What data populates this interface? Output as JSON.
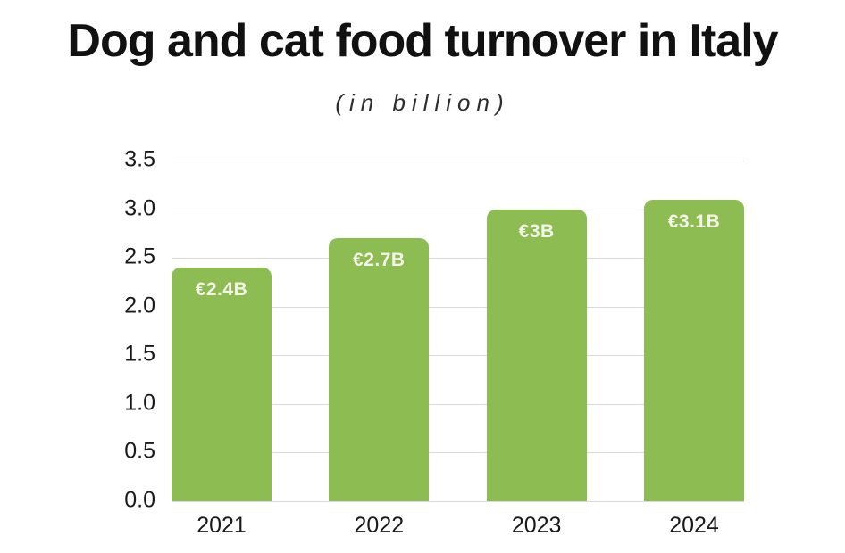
{
  "chart_data": {
    "type": "bar",
    "title": "Dog and cat food turnover in Italy",
    "subtitle": "(in billion)",
    "categories": [
      "2021",
      "2022",
      "2023",
      "2024"
    ],
    "values": [
      2.4,
      2.7,
      3.0,
      3.1
    ],
    "bar_labels": [
      "€2.4B",
      "€2.7B",
      "€3B",
      "€3.1B"
    ],
    "xlabel": "",
    "ylabel": "",
    "ylim": [
      0,
      3.5
    ],
    "yticks": [
      0,
      0.5,
      1,
      1.5,
      2,
      2.5,
      3,
      3.5
    ],
    "ytick_labels": [
      "0.0",
      "0.5",
      "1.0",
      "1.5",
      "2.0",
      "2.5",
      "3.0",
      "3.5"
    ],
    "grid": "horizontal",
    "legend": "none",
    "colors": {
      "bar": "#8CBC52",
      "bar_label_text": "#F4F5E8",
      "gridline": "#D9D9D9",
      "title_text": "#111111",
      "subtitle_text": "#2D2D2D",
      "axis_text": "#1A1A1A",
      "background": "#FFFFFF"
    }
  }
}
